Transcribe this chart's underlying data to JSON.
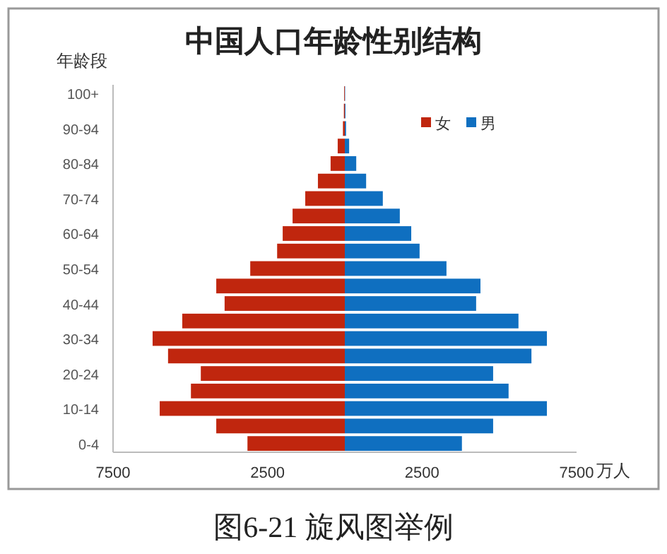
{
  "chart_data": {
    "type": "bar",
    "orientation": "horizontal",
    "title": "中国人口年龄性别结构",
    "ylabel": "年龄段",
    "xlabel": "万人",
    "categories": [
      "100+",
      null,
      "90-94",
      null,
      "80-84",
      null,
      "70-74",
      null,
      "60-64",
      null,
      "50-54",
      null,
      "40-44",
      null,
      "30-34",
      null,
      "20-24",
      null,
      "10-14",
      null,
      "0-4"
    ],
    "series": [
      {
        "name": "女",
        "color": "#c0260e",
        "values": [
          -20,
          -30,
          -60,
          -230,
          -460,
          -870,
          -1280,
          -1690,
          -2010,
          -2190,
          -3060,
          -4160,
          -3890,
          -5260,
          -6220,
          -5720,
          -4660,
          -4980,
          -5990,
          -4160,
          -3150
        ]
      },
      {
        "name": "男",
        "color": "#0f6fc0",
        "values": [
          10,
          20,
          40,
          140,
          370,
          690,
          1230,
          1780,
          2150,
          2420,
          3290,
          4390,
          4250,
          5620,
          6540,
          6040,
          4800,
          5300,
          6540,
          4800,
          3790
        ]
      }
    ],
    "xlim": [
      -7500,
      7500
    ],
    "xticks": [
      {
        "value": -7500,
        "label": "7500"
      },
      {
        "value": -2500,
        "label": "2500"
      },
      {
        "value": 2500,
        "label": "2500"
      },
      {
        "value": 7500,
        "label": "7500"
      }
    ],
    "legend": "top right",
    "stacked": true,
    "annotations": [
      "图6-21 旋风图举例"
    ]
  }
}
